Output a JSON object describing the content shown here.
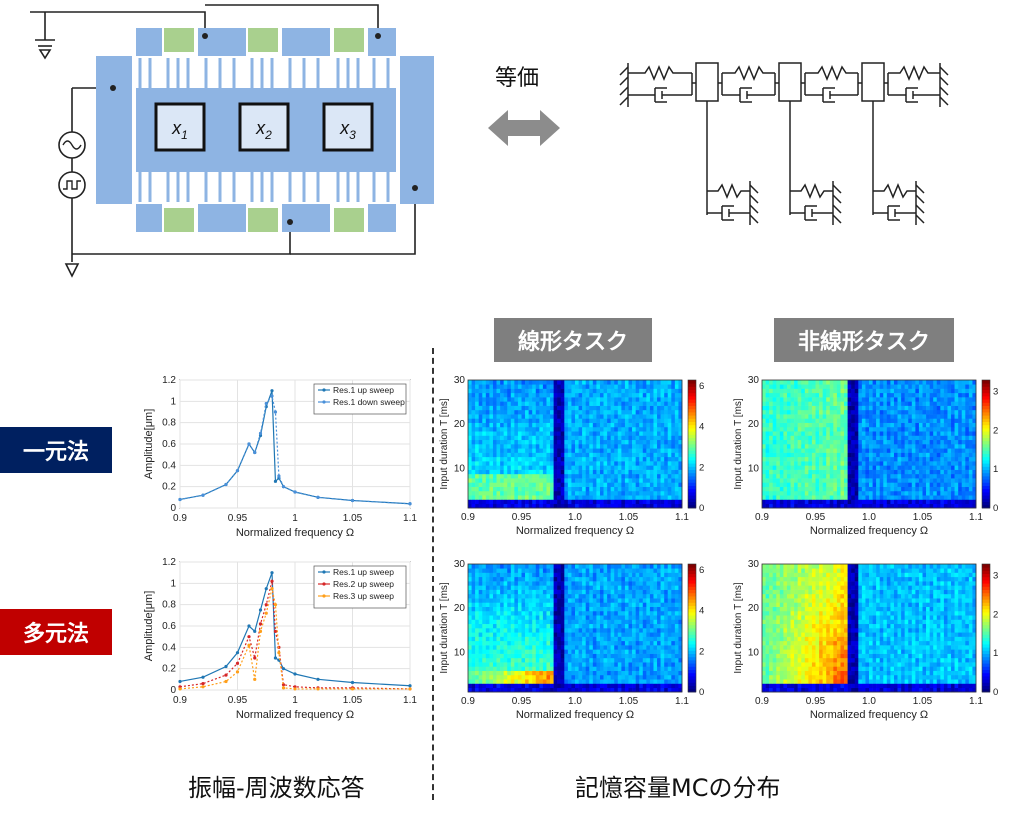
{
  "equivalence_label": "等価",
  "circuit": {
    "masses": [
      "x1",
      "x2",
      "x3"
    ]
  },
  "column_headers": {
    "linear": "線形タスク",
    "nonlinear": "非線形タスク"
  },
  "row_labels": {
    "single": "一元法",
    "multi": "多元法"
  },
  "captions": {
    "left": "振幅-周波数応答",
    "right": "記憶容量MCの分布"
  },
  "colors": {
    "row_single": "#002060",
    "row_multi": "#c00000",
    "header_bg": "#7f7f7f",
    "electrode_blue": "#8eb4e3",
    "spring_green": "#a9d08e"
  },
  "chart_data": [
    {
      "type": "line",
      "xlabel": "Normalized frequency Ω",
      "ylabel": "Amplitude[μm]",
      "xlim": [
        0.9,
        1.1
      ],
      "ylim": [
        0,
        1.2
      ],
      "xticks": [
        "0.9",
        "0.95",
        "1",
        "1.05",
        "1.1"
      ],
      "yticks": [
        "0",
        "0.2",
        "0.4",
        "0.6",
        "0.8",
        "1",
        "1.2"
      ],
      "legend_position": "top-right",
      "series": [
        {
          "name": "Res.1 up sweep",
          "color": "#1f77b4",
          "x": [
            0.9,
            0.92,
            0.94,
            0.95,
            0.96,
            0.965,
            0.97,
            0.975,
            0.98,
            0.983,
            0.986,
            0.99,
            1.0,
            1.02,
            1.05,
            1.1
          ],
          "y": [
            0.08,
            0.12,
            0.22,
            0.35,
            0.6,
            0.52,
            0.68,
            0.95,
            1.1,
            0.25,
            0.28,
            0.2,
            0.15,
            0.1,
            0.07,
            0.04
          ]
        },
        {
          "name": "Res.1 down sweep",
          "color": "#4a90d9",
          "x": [
            0.9,
            0.92,
            0.94,
            0.95,
            0.96,
            0.965,
            0.97,
            0.975,
            0.98,
            0.983,
            0.986,
            0.99,
            1.0,
            1.02,
            1.05,
            1.1
          ],
          "y": [
            0.08,
            0.12,
            0.22,
            0.35,
            0.6,
            0.52,
            0.7,
            0.98,
            1.05,
            0.9,
            0.3,
            0.2,
            0.15,
            0.1,
            0.07,
            0.04
          ]
        }
      ]
    },
    {
      "type": "line",
      "xlabel": "Normalized frequency Ω",
      "ylabel": "Amplitude[μm]",
      "xlim": [
        0.9,
        1.1
      ],
      "ylim": [
        0,
        1.2
      ],
      "xticks": [
        "0.9",
        "0.95",
        "1",
        "1.05",
        "1.1"
      ],
      "yticks": [
        "0",
        "0.2",
        "0.4",
        "0.6",
        "0.8",
        "1",
        "1.2"
      ],
      "legend_position": "top-right",
      "series": [
        {
          "name": "Res.1 up sweep",
          "color": "#1f77b4",
          "x": [
            0.9,
            0.92,
            0.94,
            0.95,
            0.96,
            0.965,
            0.97,
            0.975,
            0.98,
            0.983,
            0.986,
            0.99,
            1.0,
            1.02,
            1.05,
            1.1
          ],
          "y": [
            0.08,
            0.12,
            0.22,
            0.35,
            0.6,
            0.55,
            0.75,
            0.95,
            1.1,
            0.3,
            0.28,
            0.2,
            0.15,
            0.1,
            0.07,
            0.04
          ]
        },
        {
          "name": "Res.2 up sweep",
          "color": "#d62728",
          "x": [
            0.9,
            0.92,
            0.94,
            0.95,
            0.96,
            0.965,
            0.97,
            0.975,
            0.98,
            0.983,
            0.986,
            0.99,
            1.0,
            1.02,
            1.05,
            1.1
          ],
          "y": [
            0.03,
            0.06,
            0.14,
            0.25,
            0.5,
            0.3,
            0.62,
            0.8,
            1.02,
            0.55,
            0.4,
            0.05,
            0.03,
            0.02,
            0.02,
            0.01
          ]
        },
        {
          "name": "Res.3 up sweep",
          "color": "#ff9f1a",
          "x": [
            0.9,
            0.92,
            0.94,
            0.95,
            0.96,
            0.965,
            0.97,
            0.975,
            0.98,
            0.983,
            0.986,
            0.99,
            1.0,
            1.02,
            1.05,
            1.1
          ],
          "y": [
            0.01,
            0.03,
            0.08,
            0.17,
            0.42,
            0.1,
            0.55,
            0.72,
            0.95,
            0.8,
            0.35,
            0.02,
            0.01,
            0.01,
            0.01,
            0.01
          ]
        }
      ]
    },
    {
      "type": "heatmap",
      "task": "linear",
      "xlabel": "Normalized frequency Ω",
      "ylabel": "Input duration T [ms]",
      "xlim": [
        0.9,
        1.1
      ],
      "ylim": [
        1,
        30
      ],
      "xticks": [
        "0.9",
        "0.95",
        "1.0",
        "1.05",
        "1.1"
      ],
      "yticks": [
        "10",
        "20",
        "30"
      ],
      "colorbar_ticks": [
        "0",
        "2",
        "4",
        "6"
      ],
      "colorbar_range": [
        0,
        6.3
      ],
      "colormap": "jet"
    },
    {
      "type": "heatmap",
      "task": "nonlinear",
      "xlabel": "Normalized frequency Ω",
      "ylabel": "Input duration T [ms]",
      "xlim": [
        0.9,
        1.1
      ],
      "ylim": [
        1,
        30
      ],
      "xticks": [
        "0.9",
        "0.95",
        "1.0",
        "1.05",
        "1.1"
      ],
      "yticks": [
        "10",
        "20",
        "30"
      ],
      "colorbar_ticks": [
        "0",
        "1",
        "2",
        "3"
      ],
      "colorbar_range": [
        0,
        3.3
      ],
      "colormap": "jet"
    },
    {
      "type": "heatmap",
      "task": "linear",
      "xlabel": "Normalized frequency Ω",
      "ylabel": "Input duration T [ms]",
      "xlim": [
        0.9,
        1.1
      ],
      "ylim": [
        1,
        30
      ],
      "xticks": [
        "0.9",
        "0.95",
        "1.0",
        "1.05",
        "1.1"
      ],
      "yticks": [
        "10",
        "20",
        "30"
      ],
      "colorbar_ticks": [
        "0",
        "2",
        "4",
        "6"
      ],
      "colorbar_range": [
        0,
        6.3
      ],
      "colormap": "jet"
    },
    {
      "type": "heatmap",
      "task": "nonlinear",
      "xlabel": "Normalized frequency Ω",
      "ylabel": "Input duration T [ms]",
      "xlim": [
        0.9,
        1.1
      ],
      "ylim": [
        1,
        30
      ],
      "xticks": [
        "0.9",
        "0.95",
        "1.0",
        "1.05",
        "1.1"
      ],
      "yticks": [
        "10",
        "20",
        "30"
      ],
      "colorbar_ticks": [
        "0",
        "1",
        "2",
        "3"
      ],
      "colorbar_range": [
        0,
        3.3
      ],
      "colormap": "jet"
    }
  ]
}
